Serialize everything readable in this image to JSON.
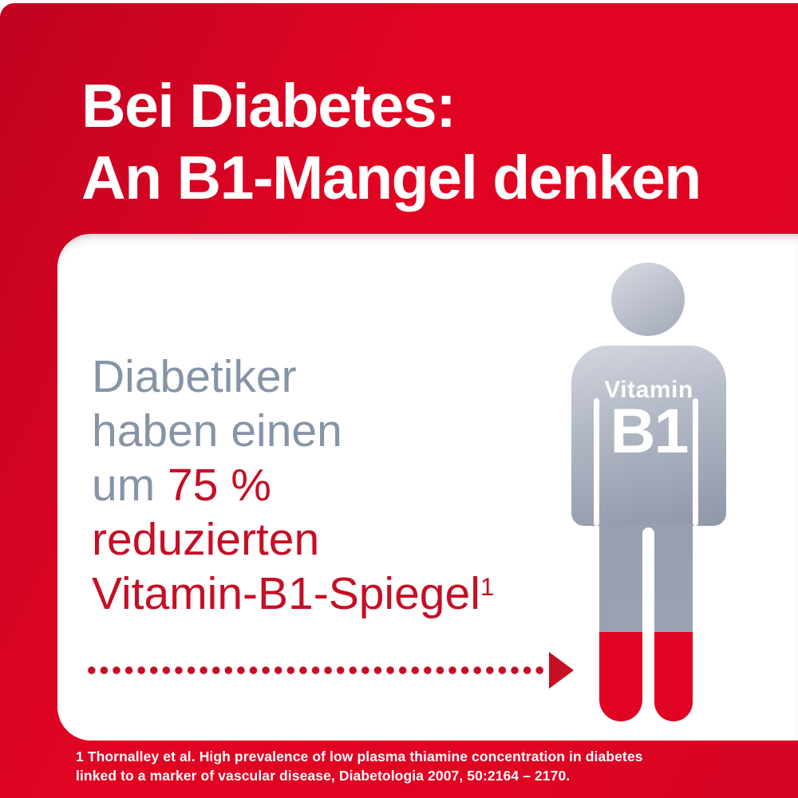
{
  "headline": {
    "line1": "Bei Diabetes:",
    "line2": "An B1-Mangel denken"
  },
  "body": {
    "line1": "Diabetiker",
    "line2": "haben einen",
    "line3_prefix": "um ",
    "line3_highlight": "75 %",
    "line4": "reduzierten",
    "line5": "Vitamin-B1-Spiegel",
    "line5_footnote_marker": "1"
  },
  "figure": {
    "label_top": "Vitamin",
    "label_main": "B1"
  },
  "footnote": {
    "line1": "1 Thornalley et al. High prevalence of low plasma thiamine concentration in diabetes",
    "line2": "linked to a marker of vascular disease, Diabetologia 2007, 50:2164 – 2170."
  },
  "colors": {
    "brand_red": "#e10422",
    "brand_red_dark": "#c00321",
    "card_white": "#ffffff",
    "text_gray": "#8694a6",
    "text_red": "#c60e25",
    "figure_gray_light": "#cfd3dc",
    "figure_gray_mid": "#aab0be",
    "figure_gray_dark": "#8f97a8"
  }
}
